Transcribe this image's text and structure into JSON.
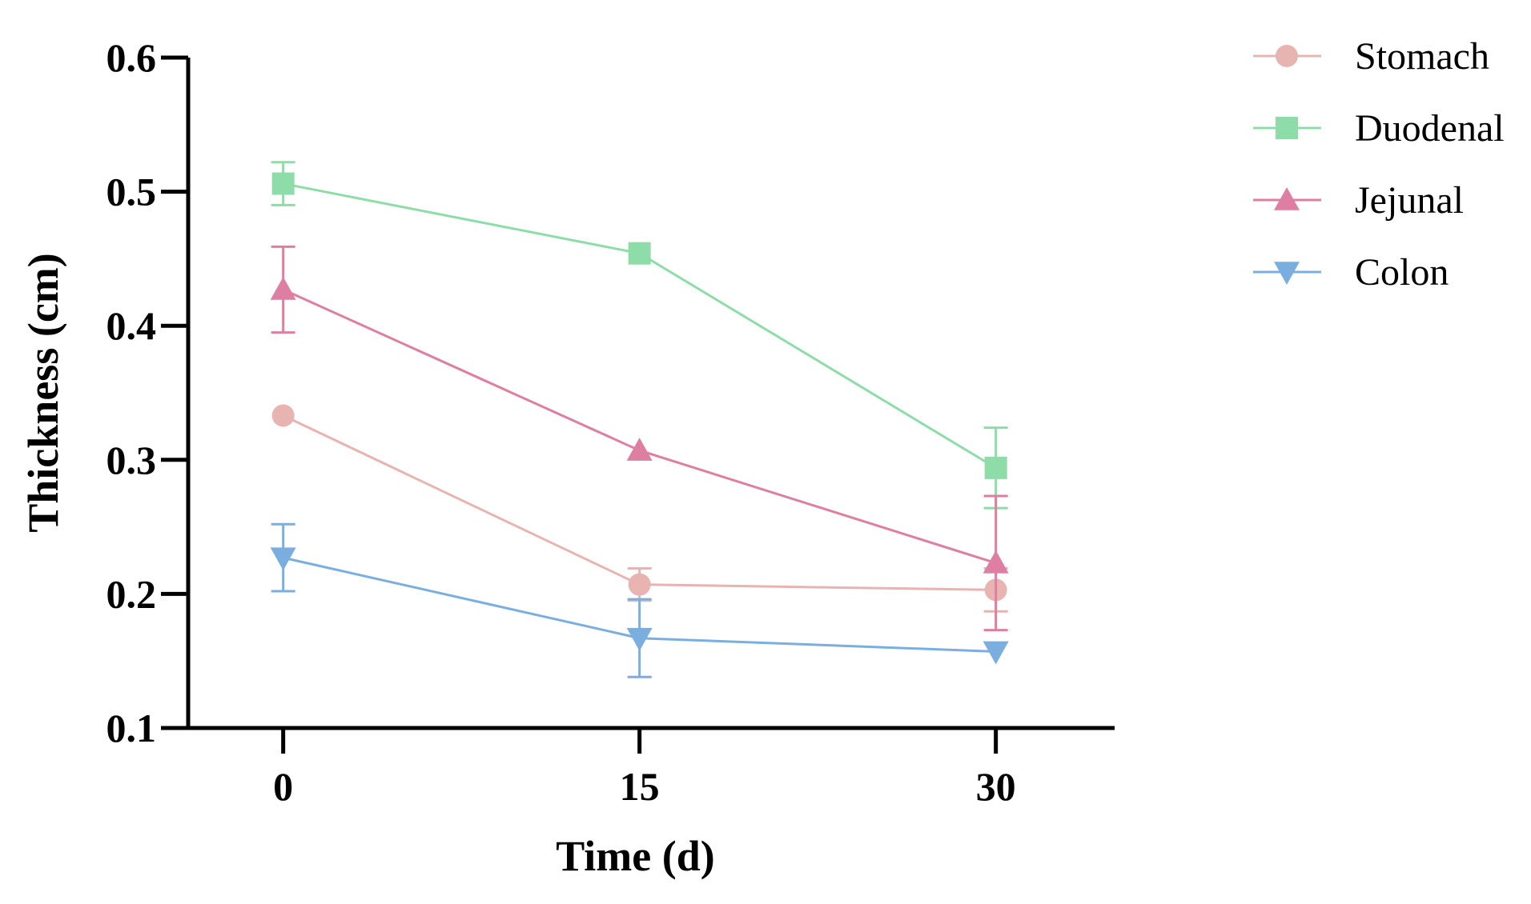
{
  "chart_data": {
    "type": "line",
    "title": "",
    "xlabel": "Time (d)",
    "ylabel": "Thickness (cm)",
    "x": [
      0,
      15,
      30
    ],
    "x_tick_labels": [
      "0",
      "15",
      "30"
    ],
    "xlim": [
      -4,
      35
    ],
    "ylim": [
      0.1,
      0.6
    ],
    "y_ticks": [
      0.1,
      0.2,
      0.3,
      0.4,
      0.5,
      0.6
    ],
    "y_tick_labels": [
      "0.1",
      "0.2",
      "0.3",
      "0.4",
      "0.5",
      "0.6"
    ],
    "grid": false,
    "legend_position": "top-right",
    "series": [
      {
        "name": "Stomach",
        "marker": "circle",
        "color": "#E8B4B1",
        "values": [
          0.333,
          0.207,
          0.203
        ],
        "errors": [
          0.0,
          0.012,
          0.016
        ]
      },
      {
        "name": "Duodenal",
        "marker": "square",
        "color": "#8EDDA8",
        "values": [
          0.506,
          0.454,
          0.294
        ],
        "errors": [
          0.016,
          0.0,
          0.03
        ]
      },
      {
        "name": "Jejunal",
        "marker": "triangle-up",
        "color": "#DE7FA1",
        "values": [
          0.427,
          0.307,
          0.223
        ],
        "errors": [
          0.032,
          0.0,
          0.05
        ]
      },
      {
        "name": "Colon",
        "marker": "triangle-down",
        "color": "#7AAEDF",
        "values": [
          0.227,
          0.167,
          0.157
        ],
        "errors": [
          0.025,
          0.029,
          0.0
        ]
      }
    ]
  }
}
